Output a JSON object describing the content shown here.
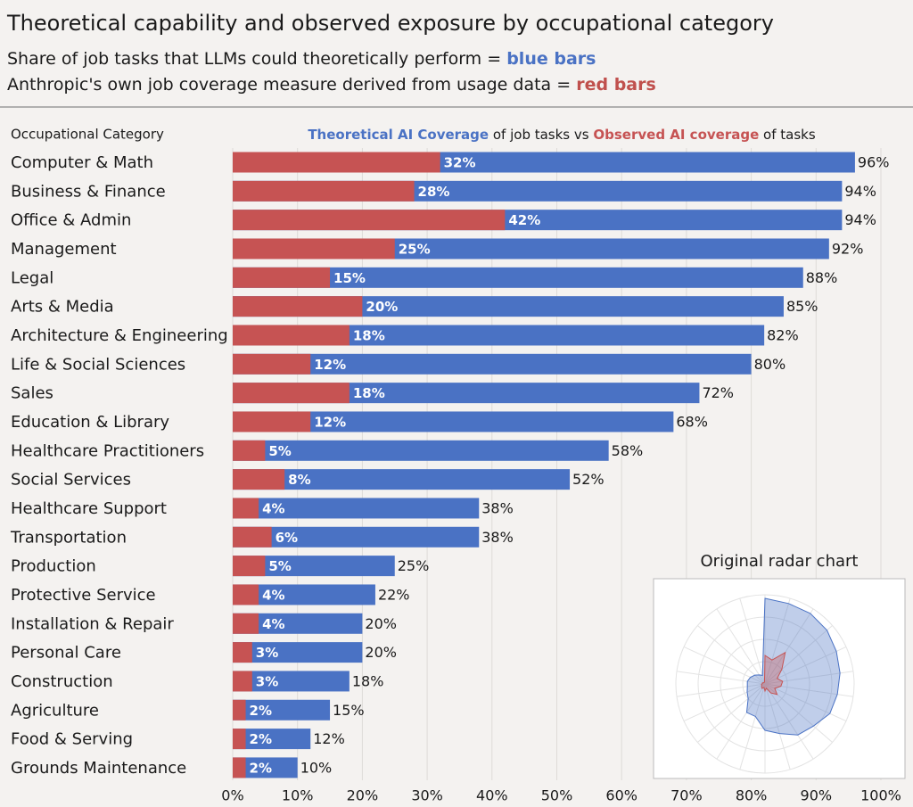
{
  "chart_data": {
    "type": "overlap-bar",
    "title": "Theoretical capability and observed exposure by occupational category",
    "subtitle_lines": [
      {
        "text": "Share of job tasks that LLMs could theoretically perform =",
        "highlight": "blue bars",
        "color": "#4a72c4"
      },
      {
        "text": "Anthropic's own job coverage measure derived from usage data =",
        "highlight": "red bars",
        "color": "#c0504d"
      }
    ],
    "category_axis_label": "Occupational Category",
    "value_axis_header": {
      "connector": "of job tasks vs",
      "suffix": "of tasks"
    },
    "categories": [
      "Computer & Math",
      "Business & Finance",
      "Office & Admin",
      "Management",
      "Legal",
      "Arts & Media",
      "Architecture & Engineering",
      "Life & Social Sciences",
      "Sales",
      "Education & Library",
      "Healthcare Practitioners",
      "Social Services",
      "Healthcare Support",
      "Transportation",
      "Production",
      "Protective Service",
      "Installation & Repair",
      "Personal Care",
      "Construction",
      "Agriculture",
      "Food & Serving",
      "Grounds Maintenance"
    ],
    "series": [
      {
        "name": "Theoretical AI Coverage",
        "color": "#4a72c4",
        "values": [
          96,
          94,
          94,
          92,
          88,
          85,
          82,
          80,
          72,
          68,
          58,
          52,
          38,
          38,
          25,
          22,
          20,
          20,
          18,
          15,
          12,
          10
        ],
        "value_labels": [
          "96%",
          "94%",
          "94%",
          "92%",
          "88%",
          "85%",
          "82%",
          "80%",
          "72%",
          "68%",
          "58%",
          "52%",
          "38%",
          "38%",
          "25%",
          "22%",
          "20%",
          "20%",
          "18%",
          "15%",
          "12%",
          "10%"
        ]
      },
      {
        "name": "Observed AI coverage",
        "color": "#c65353",
        "values": [
          32,
          28,
          42,
          25,
          15,
          20,
          18,
          12,
          18,
          12,
          5,
          8,
          4,
          6,
          5,
          4,
          4,
          3,
          3,
          2,
          2,
          2
        ],
        "value_labels": [
          "32%",
          "28%",
          "42%",
          "25%",
          "15%",
          "20%",
          "18%",
          "12%",
          "18%",
          "12%",
          "5%",
          "8%",
          "4%",
          "6%",
          "5%",
          "4%",
          "4%",
          "3%",
          "3%",
          "2%",
          "2%",
          "2%"
        ]
      }
    ],
    "xlim": [
      0,
      100
    ],
    "xticks": [
      {
        "value": 0,
        "label": "0%"
      },
      {
        "value": 10,
        "label": "10%"
      },
      {
        "value": 20,
        "label": "20%"
      },
      {
        "value": 30,
        "label": "30%"
      },
      {
        "value": 40,
        "label": "40%"
      },
      {
        "value": 50,
        "label": "50%"
      },
      {
        "value": 60,
        "label": "60%"
      },
      {
        "value": 70,
        "label": "70%"
      },
      {
        "value": 80,
        "label": "80%"
      },
      {
        "value": 90,
        "label": "90%"
      },
      {
        "value": 100,
        "label": "100%"
      }
    ],
    "grid": true,
    "inset_title": "Original radar chart"
  }
}
